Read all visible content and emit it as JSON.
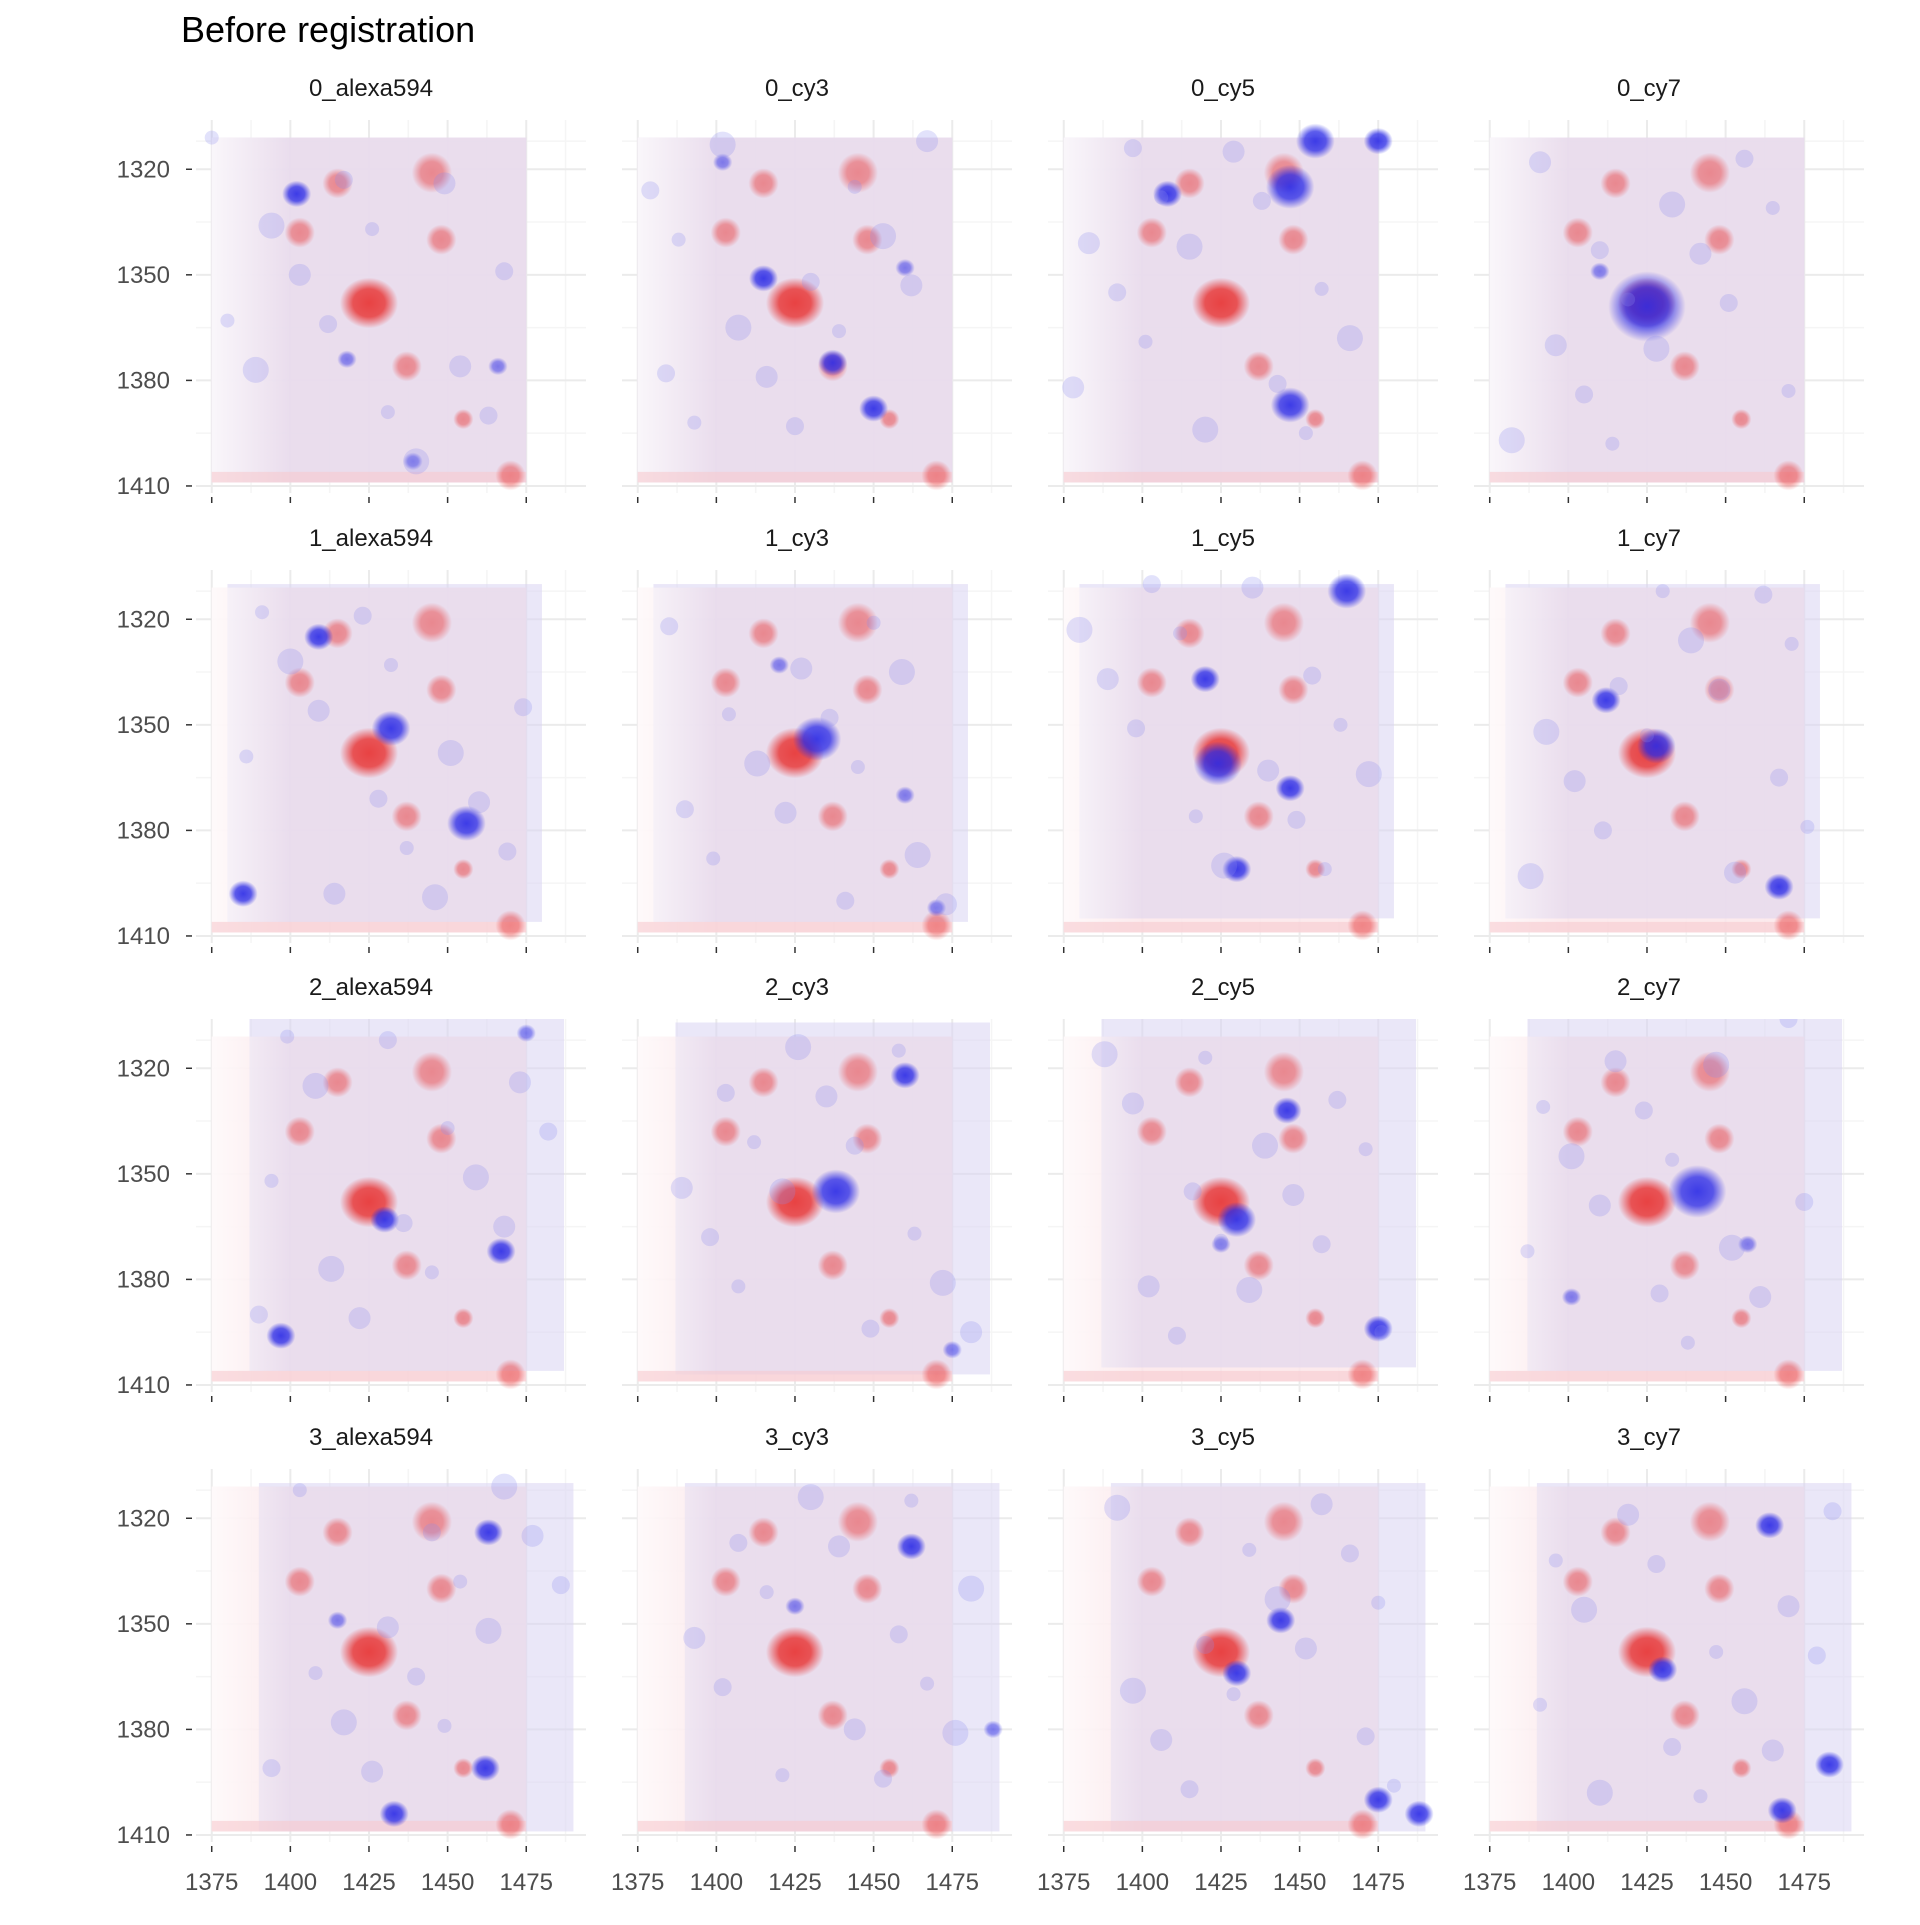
{
  "chart_data": {
    "type": "heatmap",
    "title": "Before registration",
    "xlabel": "",
    "ylabel": "",
    "facet_rows": 4,
    "facet_cols": 4,
    "panels": [
      "0_alexa594",
      "0_cy3",
      "0_cy5",
      "0_cy7",
      "1_alexa594",
      "1_cy3",
      "1_cy5",
      "1_cy7",
      "2_alexa594",
      "2_cy3",
      "2_cy5",
      "2_cy7",
      "3_alexa594",
      "3_cy3",
      "3_cy5",
      "3_cy7"
    ],
    "x_ticks": [
      1375,
      1400,
      1425,
      1450,
      1475
    ],
    "y_ticks": [
      1320,
      1350,
      1380,
      1410
    ],
    "xlim": [
      1370,
      1494
    ],
    "ylim": [
      1306,
      1412
    ],
    "y_reversed": true,
    "grid": true,
    "colors": {
      "reference_channel": "#e83a3a",
      "moving_channel": "#2a2ae6",
      "background_tint": "#e9dcec",
      "grid_major": "#ebebeb",
      "grid_minor": "#f5f5f5"
    },
    "reference_extent": {
      "x": [
        1375,
        1475
      ],
      "y": [
        1311,
        1409
      ]
    },
    "channel_extents": [
      {
        "x": [
          1375,
          1475
        ],
        "y": [
          1311,
          1409
        ]
      },
      {
        "x": [
          1375,
          1475
        ],
        "y": [
          1311,
          1409
        ]
      },
      {
        "x": [
          1375,
          1475
        ],
        "y": [
          1311,
          1409
        ]
      },
      {
        "x": [
          1375,
          1475
        ],
        "y": [
          1311,
          1409
        ]
      },
      {
        "x": [
          1380,
          1480
        ],
        "y": [
          1310,
          1406
        ]
      },
      {
        "x": [
          1380,
          1480
        ],
        "y": [
          1310,
          1406
        ]
      },
      {
        "x": [
          1380,
          1480
        ],
        "y": [
          1310,
          1405
        ]
      },
      {
        "x": [
          1380,
          1480
        ],
        "y": [
          1310,
          1405
        ]
      },
      {
        "x": [
          1387,
          1487
        ],
        "y": [
          1306,
          1406
        ]
      },
      {
        "x": [
          1387,
          1487
        ],
        "y": [
          1307,
          1407
        ]
      },
      {
        "x": [
          1387,
          1487
        ],
        "y": [
          1306,
          1405
        ]
      },
      {
        "x": [
          1387,
          1487
        ],
        "y": [
          1306,
          1406
        ]
      },
      {
        "x": [
          1390,
          1490
        ],
        "y": [
          1310,
          1409
        ]
      },
      {
        "x": [
          1390,
          1490
        ],
        "y": [
          1310,
          1409
        ]
      },
      {
        "x": [
          1390,
          1490
        ],
        "y": [
          1310,
          1409
        ]
      },
      {
        "x": [
          1390,
          1490
        ],
        "y": [
          1310,
          1409
        ]
      }
    ],
    "reference_spots": [
      {
        "x": 1425,
        "y": 1358,
        "r": 7
      },
      {
        "x": 1445,
        "y": 1321,
        "r": 4
      },
      {
        "x": 1415,
        "y": 1324,
        "r": 3
      },
      {
        "x": 1403,
        "y": 1338,
        "r": 3
      },
      {
        "x": 1448,
        "y": 1340,
        "r": 3
      },
      {
        "x": 1437,
        "y": 1376,
        "r": 3
      },
      {
        "x": 1455,
        "y": 1391,
        "r": 2
      },
      {
        "x": 1470,
        "y": 1407,
        "r": 3
      }
    ],
    "moving_spots": [
      [
        {
          "x": 1402,
          "y": 1327,
          "r": 3
        },
        {
          "x": 1466,
          "y": 1376,
          "r": 2
        },
        {
          "x": 1418,
          "y": 1374,
          "r": 2
        },
        {
          "x": 1439,
          "y": 1403,
          "r": 2
        }
      ],
      [
        {
          "x": 1402,
          "y": 1318,
          "r": 2
        },
        {
          "x": 1415,
          "y": 1351,
          "r": 3
        },
        {
          "x": 1437,
          "y": 1375,
          "r": 3
        },
        {
          "x": 1450,
          "y": 1388,
          "r": 3
        },
        {
          "x": 1460,
          "y": 1348,
          "r": 2
        }
      ],
      [
        {
          "x": 1455,
          "y": 1312,
          "r": 4
        },
        {
          "x": 1447,
          "y": 1325,
          "r": 5
        },
        {
          "x": 1408,
          "y": 1327,
          "r": 3
        },
        {
          "x": 1447,
          "y": 1387,
          "r": 4
        },
        {
          "x": 1475,
          "y": 1312,
          "r": 3
        }
      ],
      [
        {
          "x": 1425,
          "y": 1359,
          "r": 8
        },
        {
          "x": 1410,
          "y": 1349,
          "r": 2
        }
      ],
      [
        {
          "x": 1409,
          "y": 1325,
          "r": 3
        },
        {
          "x": 1432,
          "y": 1351,
          "r": 4
        },
        {
          "x": 1456,
          "y": 1378,
          "r": 4
        },
        {
          "x": 1385,
          "y": 1398,
          "r": 3
        }
      ],
      [
        {
          "x": 1432,
          "y": 1354,
          "r": 5
        },
        {
          "x": 1420,
          "y": 1333,
          "r": 2
        },
        {
          "x": 1460,
          "y": 1370,
          "r": 2
        },
        {
          "x": 1470,
          "y": 1402,
          "r": 2
        }
      ],
      [
        {
          "x": 1424,
          "y": 1361,
          "r": 5
        },
        {
          "x": 1465,
          "y": 1312,
          "r": 4
        },
        {
          "x": 1420,
          "y": 1337,
          "r": 3
        },
        {
          "x": 1447,
          "y": 1368,
          "r": 3
        },
        {
          "x": 1430,
          "y": 1391,
          "r": 3
        }
      ],
      [
        {
          "x": 1428,
          "y": 1356,
          "r": 4
        },
        {
          "x": 1412,
          "y": 1343,
          "r": 3
        },
        {
          "x": 1467,
          "y": 1396,
          "r": 3
        }
      ],
      [
        {
          "x": 1430,
          "y": 1363,
          "r": 3
        },
        {
          "x": 1467,
          "y": 1372,
          "r": 3
        },
        {
          "x": 1397,
          "y": 1396,
          "r": 3
        },
        {
          "x": 1475,
          "y": 1310,
          "r": 2
        }
      ],
      [
        {
          "x": 1438,
          "y": 1355,
          "r": 5
        },
        {
          "x": 1460,
          "y": 1322,
          "r": 3
        },
        {
          "x": 1475,
          "y": 1400,
          "r": 2
        }
      ],
      [
        {
          "x": 1430,
          "y": 1363,
          "r": 4
        },
        {
          "x": 1446,
          "y": 1332,
          "r": 3
        },
        {
          "x": 1475,
          "y": 1394,
          "r": 3
        },
        {
          "x": 1425,
          "y": 1370,
          "r": 2
        }
      ],
      [
        {
          "x": 1441,
          "y": 1355,
          "r": 6
        },
        {
          "x": 1457,
          "y": 1370,
          "r": 2
        },
        {
          "x": 1401,
          "y": 1385,
          "r": 2
        }
      ],
      [
        {
          "x": 1463,
          "y": 1324,
          "r": 3
        },
        {
          "x": 1433,
          "y": 1404,
          "r": 3
        },
        {
          "x": 1462,
          "y": 1391,
          "r": 3
        },
        {
          "x": 1415,
          "y": 1349,
          "r": 2
        }
      ],
      [
        {
          "x": 1462,
          "y": 1328,
          "r": 3
        },
        {
          "x": 1425,
          "y": 1345,
          "r": 2
        },
        {
          "x": 1488,
          "y": 1380,
          "r": 2
        }
      ],
      [
        {
          "x": 1430,
          "y": 1364,
          "r": 3
        },
        {
          "x": 1444,
          "y": 1349,
          "r": 3
        },
        {
          "x": 1475,
          "y": 1400,
          "r": 3
        },
        {
          "x": 1488,
          "y": 1404,
          "r": 3
        }
      ],
      [
        {
          "x": 1430,
          "y": 1363,
          "r": 3
        },
        {
          "x": 1464,
          "y": 1322,
          "r": 3
        },
        {
          "x": 1483,
          "y": 1390,
          "r": 3
        },
        {
          "x": 1468,
          "y": 1403,
          "r": 3
        }
      ]
    ]
  }
}
